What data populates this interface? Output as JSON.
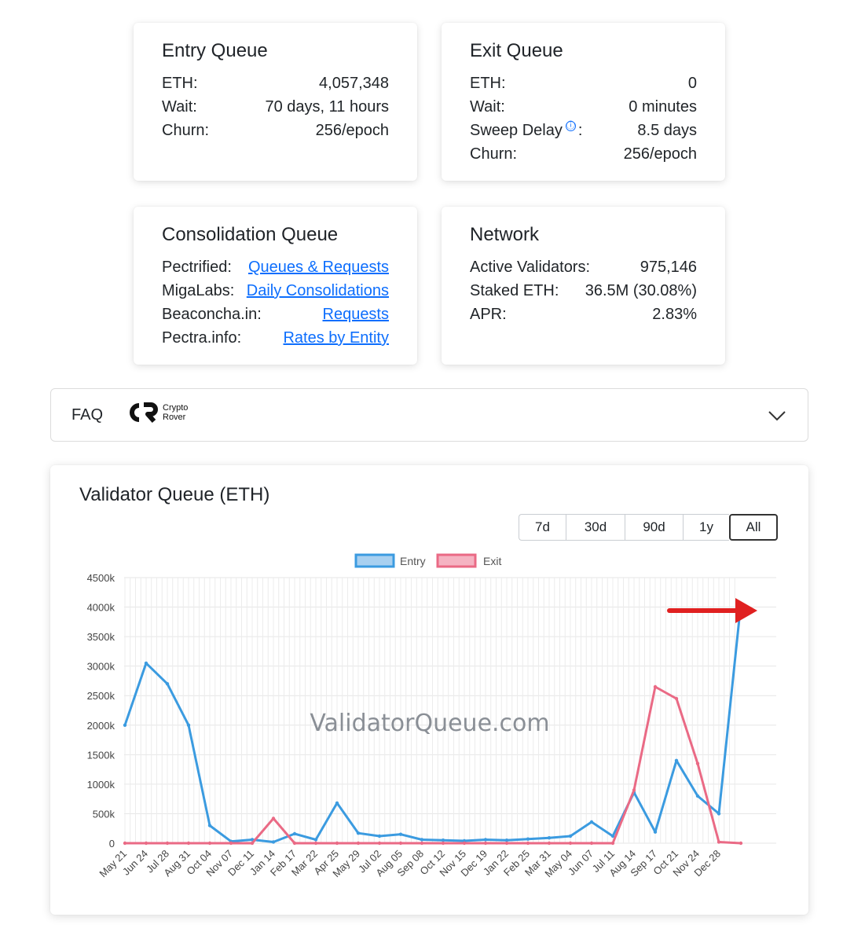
{
  "entry_queue": {
    "title": "Entry Queue",
    "rows": [
      {
        "label": "ETH:",
        "value": "4,057,348"
      },
      {
        "label": "Wait:",
        "value": "70 days, 11 hours"
      },
      {
        "label": "Churn:",
        "value": "256/epoch"
      }
    ]
  },
  "exit_queue": {
    "title": "Exit Queue",
    "rows": [
      {
        "label": "ETH:",
        "value": "0"
      },
      {
        "label": "Wait:",
        "value": "0 minutes"
      },
      {
        "label": "Sweep Delay",
        "value": "8.5 days"
      },
      {
        "label": "Churn:",
        "value": "256/epoch"
      }
    ],
    "info_icon": "ⓘ",
    "colon": ":"
  },
  "consolidation_queue": {
    "title": "Consolidation Queue",
    "rows": [
      {
        "label": "Pectrified:",
        "link": "Queues & Requests"
      },
      {
        "label": "MigaLabs:",
        "link": "Daily Consolidations"
      },
      {
        "label": "Beaconcha.in:",
        "link": "Requests"
      },
      {
        "label": "Pectra.info:",
        "link": "Rates by Entity"
      }
    ]
  },
  "network": {
    "title": "Network",
    "rows": [
      {
        "label": "Active Validators:",
        "value": "975,146"
      },
      {
        "label": "Staked ETH:",
        "value": "36.5M (30.08%)"
      },
      {
        "label": "APR:",
        "value": "2.83%"
      }
    ]
  },
  "faq": {
    "label": "FAQ",
    "logo_line1": "Crypto",
    "logo_line2": "Rover"
  },
  "chart_panel": {
    "title": "Validator Queue (ETH)",
    "ranges": [
      "7d",
      "30d",
      "90d",
      "1y",
      "All"
    ],
    "active_range": "All",
    "watermark": "ValidatorQueue.com"
  },
  "colors": {
    "entry": "#3b9be0",
    "exit": "#ea6a85",
    "arrow": "#e02020",
    "link": "#0d6efd"
  },
  "chart_data": {
    "type": "line",
    "title": "",
    "xlabel": "",
    "ylabel": "",
    "ylim": [
      0,
      4500
    ],
    "yticks": [
      "0",
      "500k",
      "1000k",
      "1500k",
      "2000k",
      "2500k",
      "3000k",
      "3500k",
      "4000k",
      "4500k"
    ],
    "grid": true,
    "legend_position": "top-center",
    "categories": [
      "May 21",
      "Jun 24",
      "Jul 28",
      "Aug 31",
      "Oct 04",
      "Nov 07",
      "Dec 11",
      "Jan 14",
      "Feb 17",
      "Mar 22",
      "Apr 25",
      "May 29",
      "Jul 02",
      "Aug 05",
      "Sep 08",
      "Oct 12",
      "Nov 15",
      "Dec 19",
      "Jan 22",
      "Feb 25",
      "Mar 31",
      "May 04",
      "Jun 07",
      "Jul 11",
      "Aug 14",
      "Sep 17",
      "Oct 21",
      "Nov 24",
      "Dec 28"
    ],
    "series": [
      {
        "name": "Entry",
        "values": [
          2000,
          3050,
          2700,
          2000,
          300,
          30,
          60,
          20,
          160,
          60,
          680,
          170,
          120,
          150,
          60,
          50,
          40,
          60,
          50,
          70,
          90,
          120,
          360,
          120,
          860,
          190,
          1400,
          800,
          500
        ],
        "last": 4057
      },
      {
        "name": "Exit",
        "values": [
          0,
          0,
          0,
          0,
          0,
          0,
          0,
          420,
          0,
          0,
          0,
          0,
          0,
          0,
          0,
          0,
          0,
          0,
          0,
          0,
          0,
          0,
          0,
          0,
          900,
          2650,
          2450,
          1350,
          20
        ],
        "last": 0
      }
    ]
  }
}
